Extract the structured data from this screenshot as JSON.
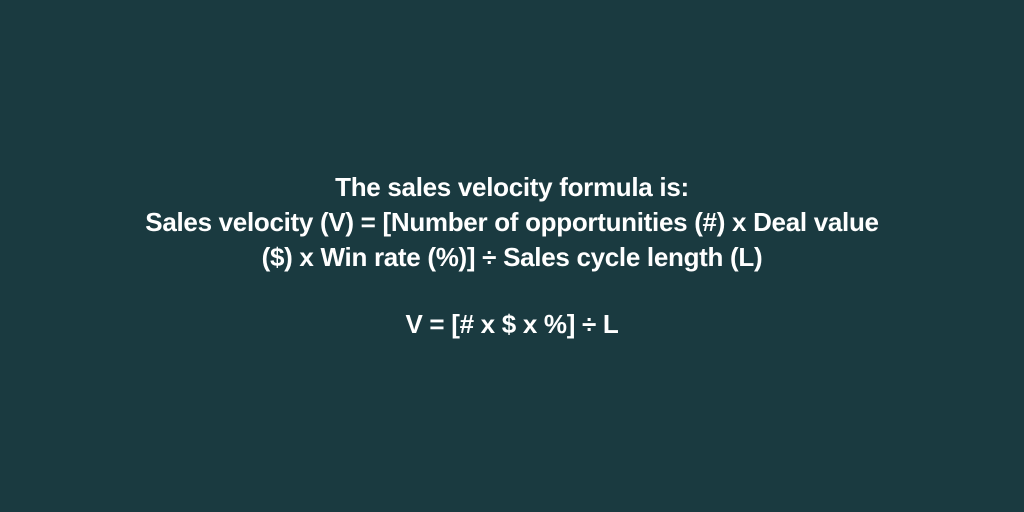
{
  "infographic": {
    "type": "infographic",
    "background_color": "#1a3a40",
    "text_color": "#ffffff",
    "font_size_pt": 26,
    "font_weight": 700,
    "line_height": 1.35,
    "lines": {
      "intro": "The sales velocity formula is:",
      "long_formula_line1": "Sales velocity (V) = [Number of opportunities (#) x Deal value",
      "long_formula_line2": "($) x Win rate (%)] ÷ Sales cycle length (L)",
      "short_formula": "V = [# x $ x %] ÷ L"
    }
  }
}
